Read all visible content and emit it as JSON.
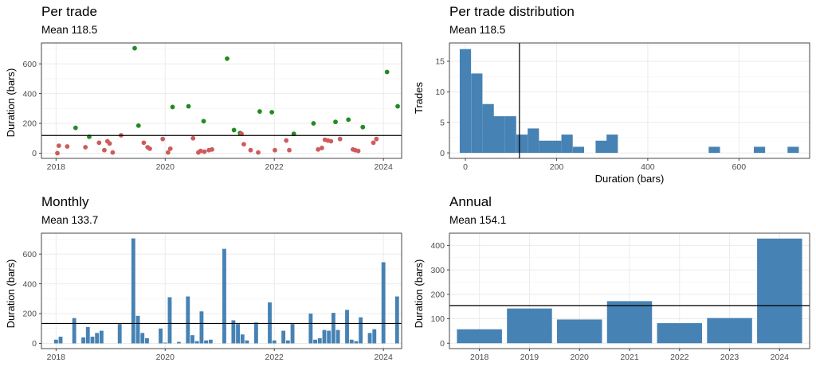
{
  "colors": {
    "win": "#228B22",
    "loss": "#CD5C5C",
    "bar": "#4682B4",
    "mean_line": "#000000",
    "grid": "#ebebeb",
    "border": "#333333"
  },
  "chart_data": [
    {
      "id": "per_trade",
      "type": "scatter",
      "title": "Per trade",
      "subtitle": "Mean 118.5",
      "xlabel": "",
      "ylabel": "Duration (bars)",
      "mean": 118.5,
      "xlim": [
        "2017-09-25",
        "2024-05-01"
      ],
      "ylim": [
        -35,
        740
      ],
      "xticks": [
        {
          "value": "2018-01-01",
          "label": "2018"
        },
        {
          "value": "2020-01-01",
          "label": "2020"
        },
        {
          "value": "2022-01-01",
          "label": "2022"
        },
        {
          "value": "2024-01-01",
          "label": "2024"
        }
      ],
      "yticks": [
        0,
        200,
        400,
        600
      ],
      "grid": true,
      "series": [
        {
          "color": "win",
          "points": [
            [
              "2018-05-10",
              170
            ],
            [
              "2018-08-10",
              110
            ],
            [
              "2019-06-10",
              705
            ],
            [
              "2019-07-05",
              185
            ],
            [
              "2020-02-20",
              310
            ],
            [
              "2020-06-05",
              315
            ],
            [
              "2020-09-15",
              215
            ],
            [
              "2021-02-20",
              635
            ],
            [
              "2021-04-05",
              155
            ],
            [
              "2021-05-15",
              135
            ],
            [
              "2021-09-25",
              280
            ],
            [
              "2021-12-15",
              275
            ],
            [
              "2022-05-10",
              130
            ],
            [
              "2022-09-20",
              200
            ],
            [
              "2023-02-15",
              210
            ],
            [
              "2023-05-10",
              225
            ],
            [
              "2023-08-15",
              175
            ],
            [
              "2024-01-25",
              545
            ],
            [
              "2024-04-05",
              315
            ]
          ]
        },
        {
          "color": "loss",
          "points": [
            [
              "2018-01-10",
              0
            ],
            [
              "2018-01-20",
              50
            ],
            [
              "2018-03-15",
              45
            ],
            [
              "2018-07-15",
              40
            ],
            [
              "2018-10-15",
              70
            ],
            [
              "2018-11-20",
              20
            ],
            [
              "2018-12-10",
              80
            ],
            [
              "2018-12-25",
              65
            ],
            [
              "2019-01-15",
              5
            ],
            [
              "2019-03-10",
              120
            ],
            [
              "2019-08-10",
              70
            ],
            [
              "2019-09-05",
              40
            ],
            [
              "2019-09-20",
              30
            ],
            [
              "2019-12-15",
              95
            ],
            [
              "2020-01-20",
              5
            ],
            [
              "2020-02-05",
              30
            ],
            [
              "2020-07-05",
              100
            ],
            [
              "2020-08-10",
              5
            ],
            [
              "2020-08-25",
              15
            ],
            [
              "2020-09-20",
              10
            ],
            [
              "2020-10-20",
              20
            ],
            [
              "2020-11-10",
              25
            ],
            [
              "2021-05-25",
              130
            ],
            [
              "2021-06-10",
              60
            ],
            [
              "2021-07-25",
              20
            ],
            [
              "2021-09-15",
              5
            ],
            [
              "2022-01-05",
              20
            ],
            [
              "2022-03-20",
              85
            ],
            [
              "2022-04-10",
              20
            ],
            [
              "2022-10-20",
              25
            ],
            [
              "2022-11-15",
              35
            ],
            [
              "2022-12-05",
              90
            ],
            [
              "2022-12-25",
              85
            ],
            [
              "2023-01-15",
              80
            ],
            [
              "2023-03-15",
              95
            ],
            [
              "2023-06-10",
              25
            ],
            [
              "2023-06-25",
              20
            ],
            [
              "2023-07-15",
              15
            ],
            [
              "2023-10-25",
              70
            ],
            [
              "2023-11-15",
              95
            ]
          ]
        }
      ]
    },
    {
      "id": "distribution",
      "type": "bar",
      "title": "Per trade distribution",
      "subtitle": "Mean 118.5",
      "xlabel": "Duration (bars)",
      "ylabel": "Trades",
      "mean": 118.5,
      "xlim": [
        -35,
        755
      ],
      "ylim": [
        -0.9,
        18
      ],
      "xticks": [
        0,
        200,
        400,
        600
      ],
      "yticks": [
        0,
        5,
        10,
        15
      ],
      "grid": true,
      "binwidth": 24.8,
      "bins": [
        [
          0,
          17
        ],
        [
          25,
          13
        ],
        [
          50,
          8
        ],
        [
          74,
          6
        ],
        [
          99,
          6
        ],
        [
          124,
          3
        ],
        [
          149,
          4
        ],
        [
          174,
          2
        ],
        [
          198,
          2
        ],
        [
          223,
          3
        ],
        [
          248,
          1
        ],
        [
          273,
          0
        ],
        [
          298,
          2
        ],
        [
          322,
          3
        ],
        [
          546,
          1
        ],
        [
          645,
          1
        ],
        [
          719,
          1
        ]
      ]
    },
    {
      "id": "monthly",
      "type": "bar",
      "title": "Monthly",
      "subtitle": "Mean 133.7",
      "xlabel": "",
      "ylabel": "Duration (bars)",
      "mean": 133.7,
      "xlim": [
        "2017-09-25",
        "2024-05-01"
      ],
      "ylim": [
        -35,
        740
      ],
      "xticks": [
        {
          "value": "2018-01-01",
          "label": "2018"
        },
        {
          "value": "2020-01-01",
          "label": "2020"
        },
        {
          "value": "2022-01-01",
          "label": "2022"
        },
        {
          "value": "2024-01-01",
          "label": "2024"
        }
      ],
      "yticks": [
        0,
        200,
        400,
        600
      ],
      "grid": true,
      "bars": [
        [
          "2018-01",
          25
        ],
        [
          "2018-02",
          45
        ],
        [
          "2018-05",
          170
        ],
        [
          "2018-07",
          40
        ],
        [
          "2018-08",
          110
        ],
        [
          "2018-09",
          45
        ],
        [
          "2018-10",
          70
        ],
        [
          "2018-11",
          85
        ],
        [
          "2019-03",
          130
        ],
        [
          "2019-06",
          705
        ],
        [
          "2019-07",
          185
        ],
        [
          "2019-08",
          70
        ],
        [
          "2019-09",
          35
        ],
        [
          "2019-12",
          100
        ],
        [
          "2020-01",
          5
        ],
        [
          "2020-02",
          310
        ],
        [
          "2020-04",
          10
        ],
        [
          "2020-06",
          315
        ],
        [
          "2020-07",
          55
        ],
        [
          "2020-08",
          15
        ],
        [
          "2020-09",
          215
        ],
        [
          "2020-10",
          20
        ],
        [
          "2020-11",
          25
        ],
        [
          "2021-02",
          635
        ],
        [
          "2021-04",
          155
        ],
        [
          "2021-05",
          130
        ],
        [
          "2021-06",
          60
        ],
        [
          "2021-07",
          20
        ],
        [
          "2021-09",
          140
        ],
        [
          "2021-12",
          275
        ],
        [
          "2022-01",
          20
        ],
        [
          "2022-03",
          85
        ],
        [
          "2022-04",
          20
        ],
        [
          "2022-05",
          130
        ],
        [
          "2022-09",
          200
        ],
        [
          "2022-10",
          25
        ],
        [
          "2022-11",
          35
        ],
        [
          "2022-12",
          90
        ],
        [
          "2023-01",
          85
        ],
        [
          "2023-02",
          205
        ],
        [
          "2023-03",
          90
        ],
        [
          "2023-05",
          225
        ],
        [
          "2023-06",
          25
        ],
        [
          "2023-07",
          15
        ],
        [
          "2023-08",
          175
        ],
        [
          "2023-10",
          70
        ],
        [
          "2023-11",
          95
        ],
        [
          "2024-01",
          545
        ],
        [
          "2024-04",
          315
        ]
      ]
    },
    {
      "id": "annual",
      "type": "bar",
      "title": "Annual",
      "subtitle": "Mean 154.1",
      "xlabel": "",
      "ylabel": "Duration (bars)",
      "mean": 154.1,
      "categories": [
        "2018",
        "2019",
        "2020",
        "2021",
        "2022",
        "2023",
        "2024"
      ],
      "values": [
        57,
        142,
        97,
        172,
        82,
        103,
        428
      ],
      "ylim": [
        -22,
        450
      ],
      "yticks": [
        0,
        100,
        200,
        300,
        400
      ],
      "grid": true
    }
  ]
}
